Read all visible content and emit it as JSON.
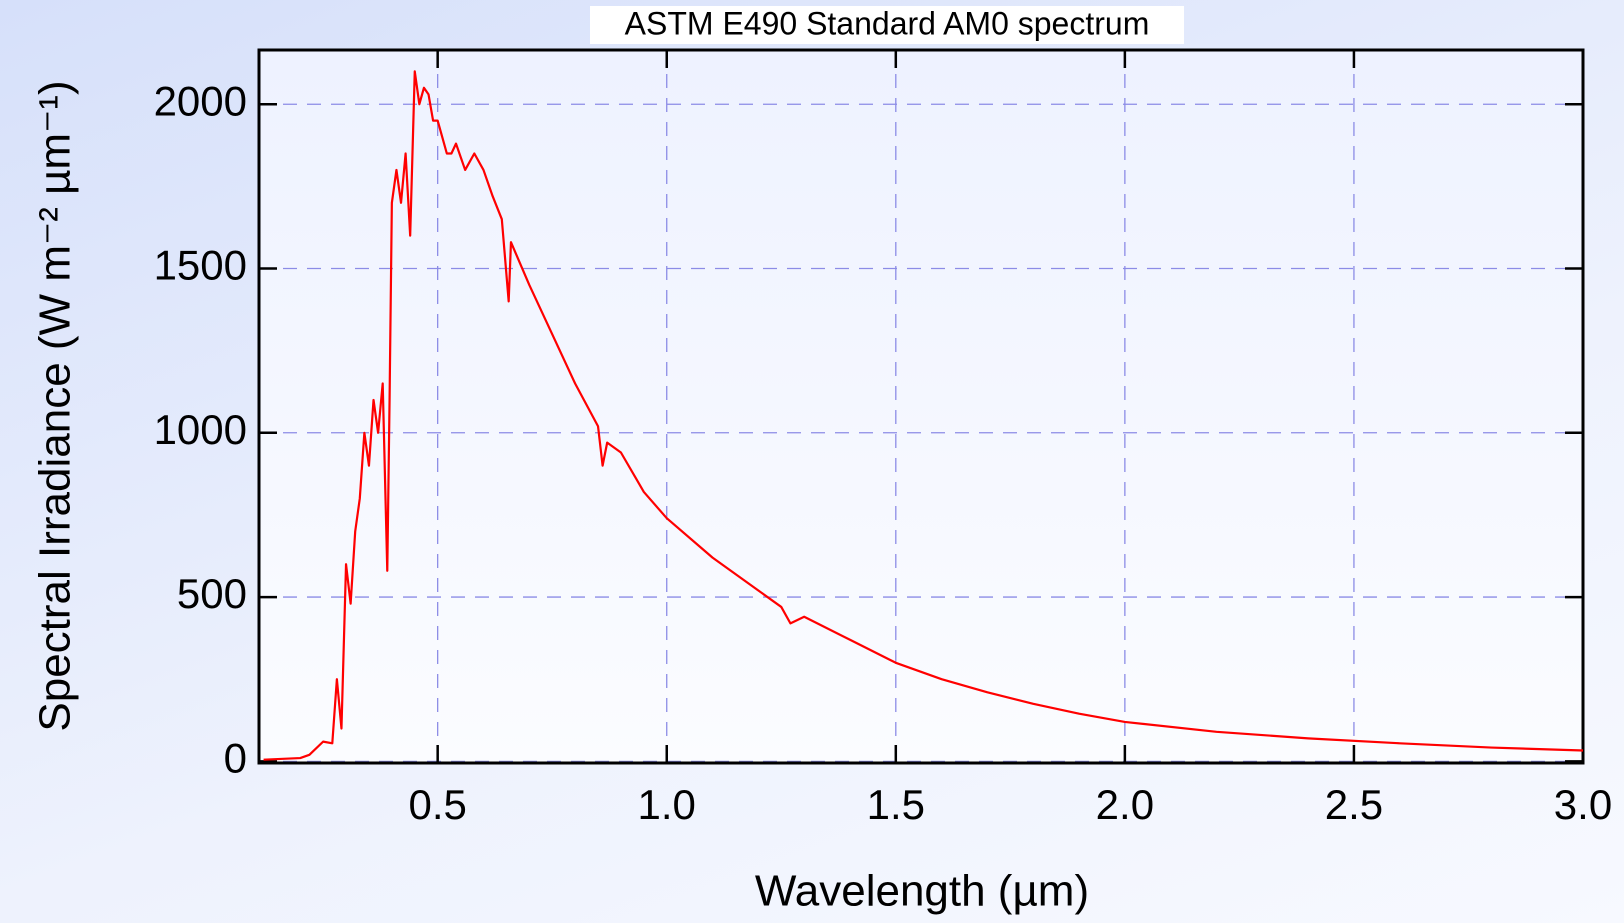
{
  "chart_data": {
    "type": "line",
    "title": "ASTM E490 Standard AM0 spectrum",
    "x_label": "Wavelength (µm)",
    "y_label": "Spectral Irradiance (W m⁻² µm⁻¹)",
    "x": [
      0.12,
      0.2,
      0.22,
      0.25,
      0.27,
      0.28,
      0.29,
      0.3,
      0.31,
      0.32,
      0.33,
      0.34,
      0.35,
      0.36,
      0.37,
      0.38,
      0.39,
      0.395,
      0.4,
      0.41,
      0.42,
      0.43,
      0.44,
      0.45,
      0.46,
      0.47,
      0.48,
      0.49,
      0.5,
      0.51,
      0.52,
      0.53,
      0.54,
      0.56,
      0.58,
      0.6,
      0.62,
      0.64,
      0.655,
      0.66,
      0.7,
      0.75,
      0.8,
      0.85,
      0.86,
      0.87,
      0.9,
      0.95,
      1.0,
      1.1,
      1.2,
      1.25,
      1.27,
      1.3,
      1.4,
      1.5,
      1.6,
      1.7,
      1.8,
      1.9,
      2.0,
      2.2,
      2.4,
      2.6,
      2.8,
      3.0
    ],
    "series": [
      {
        "name": "AM0",
        "color": "#ff0000",
        "values": [
          5,
          10,
          20,
          60,
          55,
          250,
          100,
          600,
          480,
          700,
          800,
          1000,
          900,
          1100,
          1000,
          1150,
          580,
          1100,
          1700,
          1800,
          1700,
          1850,
          1600,
          2100,
          2000,
          2050,
          2030,
          1950,
          1950,
          1900,
          1850,
          1850,
          1880,
          1800,
          1850,
          1800,
          1720,
          1650,
          1400,
          1580,
          1450,
          1300,
          1150,
          1020,
          900,
          970,
          940,
          820,
          740,
          620,
          520,
          470,
          420,
          440,
          370,
          300,
          250,
          210,
          175,
          145,
          120,
          90,
          70,
          55,
          42,
          33
        ]
      }
    ],
    "xlim": [
      0.11,
      3.0
    ],
    "ylim": [
      -5,
      2165
    ],
    "xticks": [
      0.5,
      {
        "value": 1.0,
        "label": "1.0"
      },
      1.5,
      {
        "value": 2.0,
        "label": "2.0"
      },
      2.5,
      {
        "value": 3.0,
        "label": "3.0"
      }
    ],
    "yticks": [
      0,
      500,
      1000,
      1500,
      2000
    ],
    "grid": true
  }
}
